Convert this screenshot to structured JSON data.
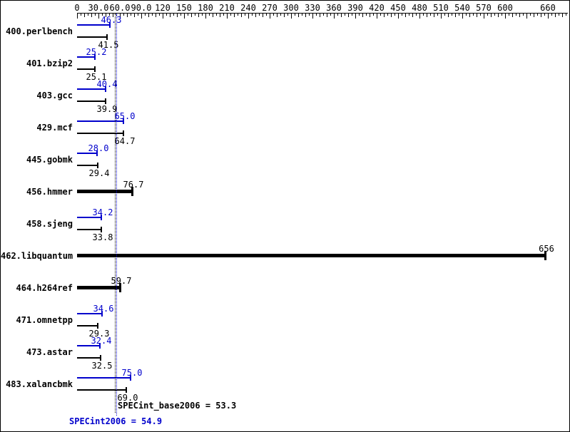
{
  "chart_data": {
    "type": "bar",
    "orientation": "horizontal",
    "title": "",
    "xlabel": "",
    "ylabel": "",
    "grid": false,
    "legend": "none",
    "colors": {
      "peak": "#0000CC",
      "base": "#000000"
    },
    "axis": {
      "min": 0,
      "max": 688,
      "minor_tick_step": 5,
      "medium_tick_step": 10,
      "major_tick_step": 30,
      "tick_labels": [
        {
          "value": 0,
          "label": "0"
        },
        {
          "value": 30,
          "label": "30.0"
        },
        {
          "value": 60,
          "label": "60.0"
        },
        {
          "value": 90,
          "label": "90.0"
        },
        {
          "value": 120,
          "label": "120"
        },
        {
          "value": 150,
          "label": "150"
        },
        {
          "value": 180,
          "label": "180"
        },
        {
          "value": 210,
          "label": "210"
        },
        {
          "value": 240,
          "label": "240"
        },
        {
          "value": 270,
          "label": "270"
        },
        {
          "value": 300,
          "label": "300"
        },
        {
          "value": 330,
          "label": "330"
        },
        {
          "value": 360,
          "label": "360"
        },
        {
          "value": 390,
          "label": "390"
        },
        {
          "value": 420,
          "label": "420"
        },
        {
          "value": 450,
          "label": "450"
        },
        {
          "value": 480,
          "label": "480"
        },
        {
          "value": 510,
          "label": "510"
        },
        {
          "value": 540,
          "label": "540"
        },
        {
          "value": 570,
          "label": "570"
        },
        {
          "value": 600,
          "label": "600"
        },
        {
          "value": 660,
          "label": "660"
        }
      ]
    },
    "benchmarks": [
      {
        "name": "400.perlbench",
        "peak": 46.3,
        "peak_label": "46.3",
        "base": 41.5,
        "base_label": "41.5"
      },
      {
        "name": "401.bzip2",
        "peak": 25.2,
        "peak_label": "25.2",
        "base": 25.1,
        "base_label": "25.1"
      },
      {
        "name": "403.gcc",
        "peak": 40.4,
        "peak_label": "40.4",
        "base": 39.9,
        "base_label": "39.9"
      },
      {
        "name": "429.mcf",
        "peak": 65.0,
        "peak_label": "65.0",
        "base": 64.7,
        "base_label": "64.7"
      },
      {
        "name": "445.gobmk",
        "peak": 28.0,
        "peak_label": "28.0",
        "base": 29.4,
        "base_label": "29.4"
      },
      {
        "name": "456.hmmer",
        "single": 76.7,
        "single_label": "76.7"
      },
      {
        "name": "458.sjeng",
        "peak": 34.2,
        "peak_label": "34.2",
        "base": 33.8,
        "base_label": "33.8"
      },
      {
        "name": "462.libquantum",
        "single": 656,
        "single_label": "656"
      },
      {
        "name": "464.h264ref",
        "single": 59.7,
        "single_label": "59.7"
      },
      {
        "name": "471.omnetpp",
        "peak": 34.6,
        "peak_label": "34.6",
        "base": 29.3,
        "base_label": "29.3"
      },
      {
        "name": "473.astar",
        "peak": 32.4,
        "peak_label": "32.4",
        "base": 32.5,
        "base_label": "32.5"
      },
      {
        "name": "483.xalancbmk",
        "peak": 75.0,
        "peak_label": "75.0",
        "base": 69.0,
        "base_label": "69.0"
      }
    ],
    "summary": {
      "base_text": "SPECint_base2006 = 53.3",
      "peak_text": "SPECint2006 = 54.9",
      "base_value": 53.3,
      "peak_value": 54.9
    }
  }
}
